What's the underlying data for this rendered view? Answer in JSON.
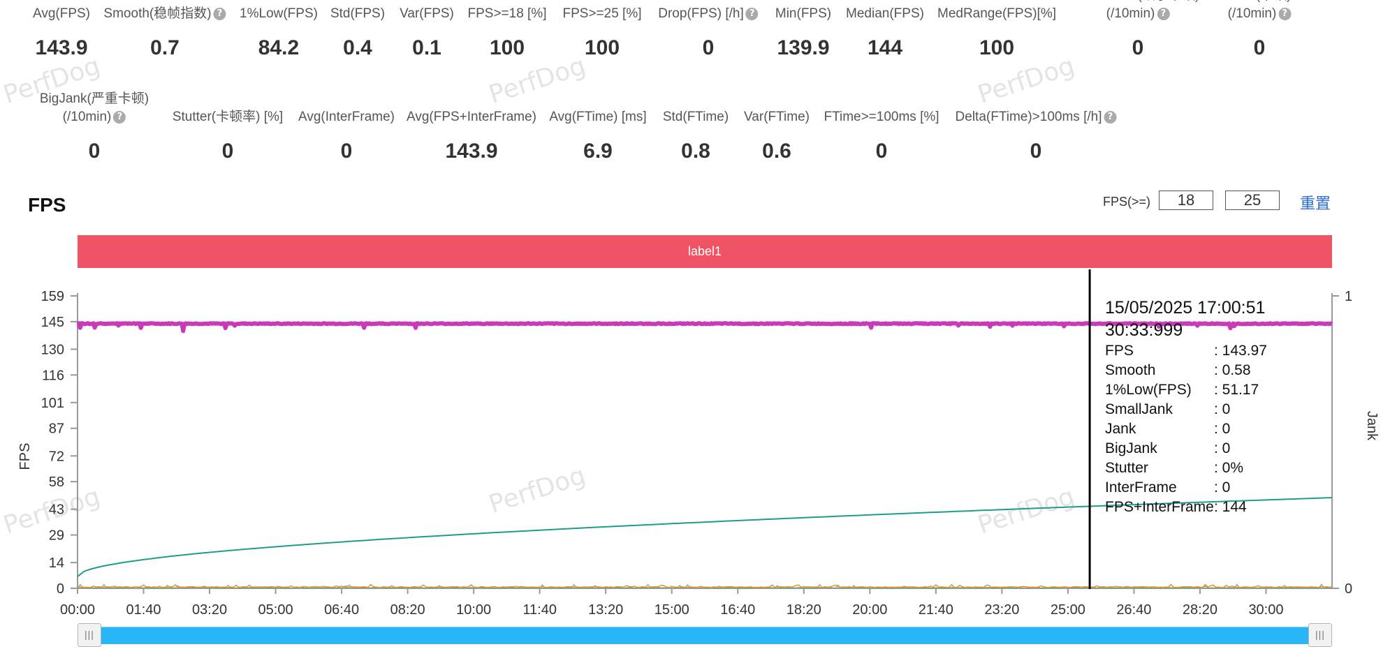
{
  "watermark_text": "PerfDog",
  "stats_row1": [
    {
      "label": "Avg(FPS)",
      "value": "143.9"
    },
    {
      "label": "Smooth(稳帧指数)",
      "value": "0.7",
      "help": true
    },
    {
      "label": "1%Low(FPS)",
      "value": "84.2"
    },
    {
      "label": "Std(FPS)",
      "value": "0.4"
    },
    {
      "label": "Var(FPS)",
      "value": "0.1"
    },
    {
      "label": "FPS>=18 [%]",
      "value": "100"
    },
    {
      "label": "FPS>=25 [%]",
      "value": "100"
    },
    {
      "label": "Drop(FPS) [/h]",
      "value": "0",
      "help": true
    },
    {
      "label": "Min(FPS)",
      "value": "139.9"
    },
    {
      "label": "Median(FPS)",
      "value": "144"
    },
    {
      "label": "MedRange(FPS)[%]",
      "value": "100"
    },
    {
      "label": "SmallJank(细小卡顿)",
      "label2": "(/10min)",
      "value": "0",
      "help": true
    },
    {
      "label": "Jank(卡顿)",
      "label2": "(/10min)",
      "value": "0",
      "help": true
    }
  ],
  "stats_row2": [
    {
      "label": "BigJank(严重卡顿)",
      "label2": "(/10min)",
      "value": "0",
      "help": true
    },
    {
      "label": "Stutter(卡顿率) [%]",
      "value": "0"
    },
    {
      "label": "Avg(InterFrame)",
      "value": "0"
    },
    {
      "label": "Avg(FPS+InterFrame)",
      "value": "143.9"
    },
    {
      "label": "Avg(FTime) [ms]",
      "value": "6.9"
    },
    {
      "label": "Std(FTime)",
      "value": "0.8"
    },
    {
      "label": "Var(FTime)",
      "value": "0.6"
    },
    {
      "label": "FTime>=100ms [%]",
      "value": "0"
    },
    {
      "label": "Delta(FTime)>100ms [/h]",
      "value": "0",
      "help": true
    }
  ],
  "fps_section": {
    "title": "FPS",
    "threshold_label": "FPS(>=)",
    "threshold_1": "18",
    "threshold_2": "25",
    "reset_label": "重置",
    "label_bar": "label1"
  },
  "chart_data": {
    "type": "line",
    "ylabel": "FPS",
    "y2label": "Jank",
    "yticks": [
      "159",
      "145",
      "130",
      "116",
      "101",
      "87",
      "72",
      "58",
      "43",
      "29",
      "14",
      "0"
    ],
    "y2ticks": [
      "1",
      "0"
    ],
    "ylim": [
      0,
      159
    ],
    "y2lim": [
      0,
      1
    ],
    "xticks": [
      "00:00",
      "01:40",
      "03:20",
      "05:00",
      "06:40",
      "08:20",
      "10:00",
      "11:40",
      "13:20",
      "15:00",
      "16:40",
      "18:20",
      "20:00",
      "21:40",
      "23:20",
      "25:00",
      "26:40",
      "28:20",
      "30:00"
    ],
    "x_range_seconds": [
      0,
      1900
    ],
    "cursor_time": "25:33",
    "series": [
      {
        "name": "FPS",
        "color": "#c83ab9",
        "approx_value": 143.9,
        "min_value": 139.9
      },
      {
        "name": "Smooth",
        "color": "#1b9e8a",
        "start_value": 0.04,
        "end_value": 0.31
      },
      {
        "name": "Jank",
        "color": "#e8922c",
        "approx_value": 0
      },
      {
        "name": "SmallJank",
        "color": "#5aa55a",
        "approx_value": 0
      }
    ]
  },
  "tooltip": {
    "datetime": "15/05/2025 17:00:51",
    "elapsed": "30:33:999",
    "rows": [
      {
        "key": "FPS",
        "value": ": 143.97"
      },
      {
        "key": "Smooth",
        "value": ": 0.58"
      },
      {
        "key": "1%Low(FPS)",
        "value": ": 51.17"
      },
      {
        "key": "SmallJank",
        "value": ": 0"
      },
      {
        "key": "Jank",
        "value": ": 0"
      },
      {
        "key": "BigJank",
        "value": ": 0"
      },
      {
        "key": "Stutter",
        "value": ": 0%"
      },
      {
        "key": "InterFrame",
        "value": ": 0"
      },
      {
        "key": "FPS+InterFrame",
        "value": ": 144"
      }
    ]
  },
  "slider": {
    "start_fraction": 0,
    "end_fraction": 1
  },
  "colors": {
    "label_bar": "#ef5365",
    "slider": "#29b6f6",
    "link": "#2f6cdc"
  }
}
